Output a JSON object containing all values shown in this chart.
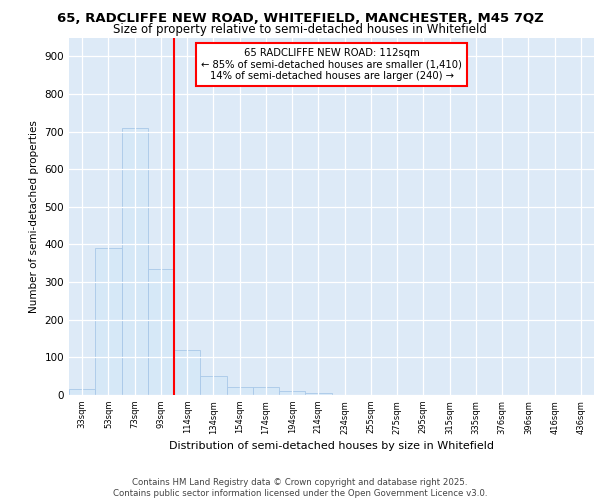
{
  "title1": "65, RADCLIFFE NEW ROAD, WHITEFIELD, MANCHESTER, M45 7QZ",
  "title2": "Size of property relative to semi-detached houses in Whitefield",
  "xlabel": "Distribution of semi-detached houses by size in Whitefield",
  "ylabel": "Number of semi-detached properties",
  "categories": [
    "33sqm",
    "53sqm",
    "73sqm",
    "93sqm",
    "114sqm",
    "134sqm",
    "154sqm",
    "174sqm",
    "194sqm",
    "214sqm",
    "234sqm",
    "255sqm",
    "275sqm",
    "295sqm",
    "315sqm",
    "335sqm",
    "376sqm",
    "396sqm",
    "416sqm",
    "436sqm"
  ],
  "values": [
    15,
    390,
    710,
    335,
    120,
    50,
    20,
    20,
    10,
    5,
    0,
    0,
    0,
    0,
    0,
    0,
    0,
    0,
    0,
    0
  ],
  "bar_color": "#d6e8f7",
  "bar_edge_color": "#a8c8e8",
  "vline_pos": 3.5,
  "annotation_text_line1": "65 RADCLIFFE NEW ROAD: 112sqm",
  "annotation_text_line2": "← 85% of semi-detached houses are smaller (1,410)",
  "annotation_text_line3": "14% of semi-detached houses are larger (240) →",
  "bg_color": "#ddeaf7",
  "footer1": "Contains HM Land Registry data © Crown copyright and database right 2025.",
  "footer2": "Contains public sector information licensed under the Open Government Licence v3.0.",
  "ylim": [
    0,
    950
  ],
  "yticks": [
    0,
    100,
    200,
    300,
    400,
    500,
    600,
    700,
    800,
    900
  ]
}
